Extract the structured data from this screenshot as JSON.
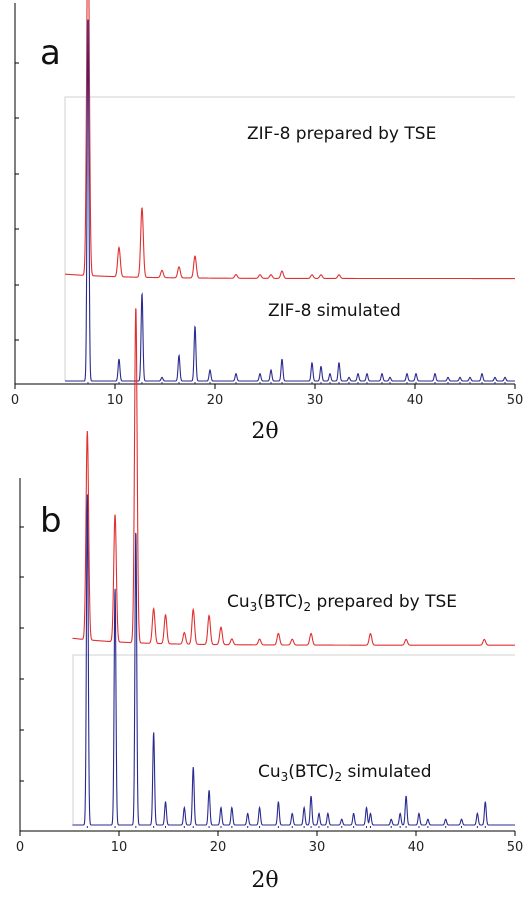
{
  "figure": {
    "panels": [
      "a",
      "b"
    ]
  },
  "chart_data": [
    {
      "type": "line",
      "panel": "a",
      "xlabel": "2θ",
      "xlim": [
        0,
        50
      ],
      "xticks": [
        0,
        10,
        20,
        30,
        40,
        50
      ],
      "ylabel": "",
      "series": [
        {
          "name": "ZIF-8 prepared by TSE",
          "color": "#e03030",
          "x_range": [
            5,
            50
          ],
          "baseline": 0.28,
          "peaks": [
            [
              7.3,
              1.0
            ],
            [
              10.4,
              0.08
            ],
            [
              12.7,
              0.19
            ],
            [
              14.7,
              0.02
            ],
            [
              16.4,
              0.03
            ],
            [
              18.0,
              0.06
            ],
            [
              22.1,
              0.01
            ],
            [
              24.5,
              0.01
            ],
            [
              25.6,
              0.01
            ],
            [
              26.7,
              0.02
            ],
            [
              29.7,
              0.01
            ],
            [
              30.6,
              0.01
            ],
            [
              32.4,
              0.01
            ]
          ]
        },
        {
          "name": "ZIF-8 simulated",
          "color": "#2a2a90",
          "x_range": [
            5,
            50
          ],
          "baseline": 0.0,
          "peaks": [
            [
              7.3,
              1.0
            ],
            [
              10.4,
              0.06
            ],
            [
              12.7,
              0.24
            ],
            [
              14.7,
              0.01
            ],
            [
              16.4,
              0.07
            ],
            [
              18.0,
              0.15
            ],
            [
              19.5,
              0.03
            ],
            [
              22.1,
              0.02
            ],
            [
              24.5,
              0.02
            ],
            [
              25.6,
              0.03
            ],
            [
              26.7,
              0.06
            ],
            [
              29.7,
              0.05
            ],
            [
              30.6,
              0.04
            ],
            [
              31.5,
              0.02
            ],
            [
              32.4,
              0.05
            ],
            [
              33.4,
              0.01
            ],
            [
              34.3,
              0.02
            ],
            [
              35.2,
              0.02
            ],
            [
              36.7,
              0.02
            ],
            [
              37.5,
              0.01
            ],
            [
              39.2,
              0.02
            ],
            [
              40.1,
              0.02
            ],
            [
              42.0,
              0.02
            ],
            [
              43.3,
              0.01
            ],
            [
              44.5,
              0.01
            ],
            [
              45.5,
              0.01
            ],
            [
              46.7,
              0.02
            ],
            [
              48.0,
              0.01
            ],
            [
              49.0,
              0.01
            ]
          ]
        }
      ]
    },
    {
      "type": "line",
      "panel": "b",
      "xlabel": "2θ",
      "xlim": [
        0,
        50
      ],
      "xticks": [
        0,
        10,
        20,
        30,
        40,
        50
      ],
      "ylabel": "",
      "series": [
        {
          "name_parts": [
            "Cu",
            "3",
            "(BTC)",
            "2",
            " prepared by TSE"
          ],
          "color": "#e03030",
          "x_range": [
            5.3,
            50
          ],
          "baseline": 0.31,
          "peaks": [
            [
              6.8,
              0.36
            ],
            [
              9.6,
              0.22
            ],
            [
              11.7,
              0.58
            ],
            [
              13.5,
              0.06
            ],
            [
              14.7,
              0.05
            ],
            [
              16.6,
              0.02
            ],
            [
              17.5,
              0.06
            ],
            [
              19.1,
              0.05
            ],
            [
              20.3,
              0.03
            ],
            [
              21.4,
              0.01
            ],
            [
              24.2,
              0.01
            ],
            [
              26.1,
              0.02
            ],
            [
              27.5,
              0.01
            ],
            [
              29.4,
              0.02
            ],
            [
              35.4,
              0.02
            ],
            [
              39.0,
              0.01
            ],
            [
              46.9,
              0.01
            ]
          ]
        },
        {
          "name_parts": [
            "Cu",
            "3",
            "(BTC)",
            "2",
            " simulated"
          ],
          "color": "#2a2a90",
          "x_range": [
            5.3,
            50
          ],
          "baseline": 0.0,
          "peaks": [
            [
              6.8,
              0.57
            ],
            [
              9.6,
              0.41
            ],
            [
              11.7,
              0.51
            ],
            [
              13.5,
              0.16
            ],
            [
              14.7,
              0.04
            ],
            [
              16.6,
              0.03
            ],
            [
              17.5,
              0.1
            ],
            [
              19.1,
              0.06
            ],
            [
              20.3,
              0.03
            ],
            [
              21.4,
              0.03
            ],
            [
              23.0,
              0.02
            ],
            [
              24.2,
              0.03
            ],
            [
              26.1,
              0.04
            ],
            [
              27.5,
              0.02
            ],
            [
              28.7,
              0.03
            ],
            [
              29.4,
              0.05
            ],
            [
              30.2,
              0.02
            ],
            [
              31.1,
              0.02
            ],
            [
              32.5,
              0.01
            ],
            [
              33.7,
              0.02
            ],
            [
              35.0,
              0.03
            ],
            [
              35.4,
              0.02
            ],
            [
              37.5,
              0.01
            ],
            [
              38.4,
              0.02
            ],
            [
              39.0,
              0.05
            ],
            [
              40.3,
              0.02
            ],
            [
              41.2,
              0.01
            ],
            [
              43.0,
              0.01
            ],
            [
              44.6,
              0.01
            ],
            [
              46.2,
              0.02
            ],
            [
              47.0,
              0.04
            ]
          ]
        }
      ]
    }
  ]
}
